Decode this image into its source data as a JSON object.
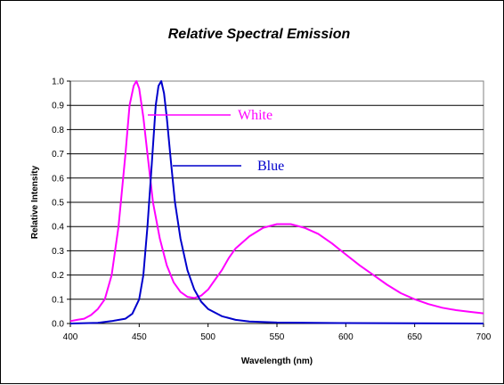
{
  "chart_data": {
    "type": "line",
    "title": "Relative Spectral Emission",
    "xlabel": "Wavelength (nm)",
    "ylabel": "Relative Intensity",
    "xlim": [
      400,
      700
    ],
    "ylim": [
      0,
      1.0
    ],
    "x_ticks": [
      400,
      450,
      500,
      550,
      600,
      650,
      700
    ],
    "x_tick_labels": [
      "400",
      "450",
      "500",
      "550",
      "600",
      "650",
      "700"
    ],
    "y_ticks": [
      0,
      0.1,
      0.2,
      0.3,
      0.4,
      0.5,
      0.6,
      0.7,
      0.8,
      0.9,
      1.0
    ],
    "y_tick_labels": [
      "0.0",
      "0.1",
      "0.2",
      "0.3",
      "0.4",
      "0.5",
      "0.6",
      "0.7",
      "0.8",
      "0.9",
      "1.0"
    ],
    "grid": "horizontal",
    "legend_placement": "inline-labels",
    "series": [
      {
        "name": "White",
        "color": "#ff00ff",
        "x": [
          400,
          405,
          410,
          415,
          420,
          425,
          430,
          435,
          440,
          443,
          446,
          448,
          450,
          453,
          456,
          460,
          465,
          470,
          475,
          480,
          485,
          490,
          495,
          500,
          505,
          510,
          515,
          520,
          530,
          540,
          550,
          560,
          570,
          580,
          590,
          600,
          610,
          620,
          630,
          640,
          650,
          660,
          670,
          680,
          690,
          700
        ],
        "y": [
          0.01,
          0.015,
          0.02,
          0.035,
          0.06,
          0.1,
          0.2,
          0.4,
          0.7,
          0.9,
          0.98,
          1.0,
          0.97,
          0.85,
          0.7,
          0.5,
          0.35,
          0.24,
          0.17,
          0.13,
          0.11,
          0.105,
          0.115,
          0.14,
          0.18,
          0.22,
          0.27,
          0.31,
          0.36,
          0.395,
          0.41,
          0.41,
          0.395,
          0.37,
          0.33,
          0.285,
          0.24,
          0.2,
          0.16,
          0.125,
          0.1,
          0.08,
          0.065,
          0.055,
          0.048,
          0.042
        ]
      },
      {
        "name": "Blue",
        "color": "#0000cc",
        "x": [
          400,
          420,
          430,
          440,
          445,
          450,
          453,
          456,
          459,
          462,
          464,
          466,
          468,
          470,
          473,
          476,
          480,
          485,
          490,
          495,
          500,
          510,
          520,
          530,
          550,
          600,
          650,
          700
        ],
        "y": [
          0.0,
          0.003,
          0.01,
          0.02,
          0.04,
          0.1,
          0.2,
          0.4,
          0.65,
          0.9,
          0.98,
          1.0,
          0.95,
          0.85,
          0.67,
          0.5,
          0.35,
          0.22,
          0.14,
          0.09,
          0.06,
          0.03,
          0.015,
          0.008,
          0.004,
          0.002,
          0.001,
          0.0
        ]
      }
    ]
  }
}
